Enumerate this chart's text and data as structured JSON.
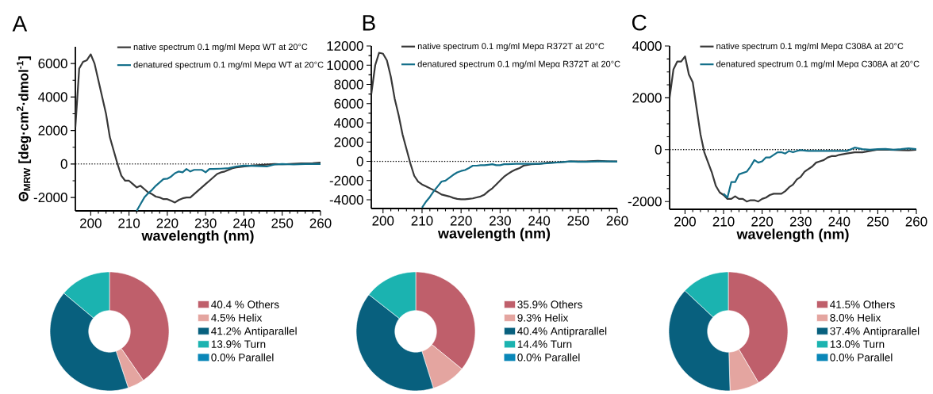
{
  "chart_data": [
    {
      "type": "line",
      "title": "A",
      "xlabel": "wavelength (nm)",
      "ylabel": "Θ$_{MRW}$ [deg·cm$^{2}$·dmol$^{-1}$]",
      "xlim": [
        196,
        260
      ],
      "ylim": [
        -2800,
        7000
      ],
      "xticks": [
        200,
        210,
        220,
        230,
        240,
        250,
        260
      ],
      "yticks": [
        -2000,
        0,
        2000,
        4000,
        6000
      ],
      "legend": "top right",
      "marker": "none",
      "ref_lines": [
        {
          "axis": "y",
          "value": 0,
          "color": "#000000",
          "line_style": "dotted"
        }
      ],
      "series": [
        {
          "name": "native spectrum 0.1 mg/ml Mepα WT at 20°C",
          "color": "#383838",
          "x": [
            196,
            197,
            198,
            199,
            200,
            201,
            202,
            203,
            204,
            205,
            206,
            207,
            208,
            209,
            210,
            211,
            212,
            213,
            214,
            215,
            216,
            217,
            218,
            219,
            220,
            221,
            222,
            223,
            224,
            225,
            226,
            227,
            228,
            229,
            230,
            231,
            232,
            233,
            234,
            235,
            236,
            237,
            238,
            240,
            242,
            245,
            248,
            250,
            252,
            255,
            258,
            260
          ],
          "values": [
            2200,
            5700,
            6100,
            6200,
            6550,
            6000,
            5000,
            4000,
            3000,
            1600,
            800,
            0,
            -700,
            -1000,
            -1000,
            -1200,
            -1400,
            -1300,
            -1500,
            -1700,
            -1800,
            -1950,
            -2000,
            -2100,
            -2100,
            -2200,
            -2300,
            -2150,
            -2050,
            -2000,
            -2000,
            -1800,
            -1600,
            -1400,
            -1200,
            -1000,
            -800,
            -600,
            -500,
            -450,
            -350,
            -250,
            -200,
            -150,
            -100,
            -50,
            0,
            -20,
            0,
            30,
            50,
            80
          ]
        },
        {
          "name": "denatured spectrum 0.1 mg/ml Mepα WT at 20°C",
          "color": "#136f8a",
          "x": [
            212,
            213,
            214,
            215,
            216,
            217,
            218,
            219,
            220,
            221,
            222,
            223,
            224,
            225,
            226,
            227,
            228,
            229,
            230,
            231,
            232,
            234,
            236,
            238,
            240,
            243,
            246,
            248,
            250,
            253,
            256,
            260
          ],
          "values": [
            -2800,
            -2400,
            -2000,
            -1750,
            -1550,
            -1300,
            -1100,
            -900,
            -880,
            -750,
            -550,
            -450,
            -500,
            -300,
            -450,
            -350,
            -350,
            -350,
            -500,
            -300,
            -300,
            -280,
            -250,
            -150,
            -100,
            -120,
            -150,
            -30,
            0,
            -30,
            0,
            0
          ]
        }
      ]
    },
    {
      "type": "line",
      "title": "B",
      "xlabel": "wavelength (nm)",
      "xlim": [
        197,
        260
      ],
      "ylim": [
        -4900,
        12000
      ],
      "xticks": [
        200,
        210,
        220,
        230,
        240,
        250,
        260
      ],
      "yticks": [
        -4000,
        -2000,
        0,
        2000,
        4000,
        6000,
        8000,
        10000,
        12000
      ],
      "legend": "top right",
      "marker": "none",
      "ref_lines": [
        {
          "axis": "y",
          "value": 0,
          "color": "#000000",
          "line_style": "dotted"
        }
      ],
      "series": [
        {
          "name": "native spectrum 0.1 mg/ml Mepα R372T at 20°C",
          "color": "#383838",
          "x": [
            197,
            198,
            199,
            200,
            201,
            202,
            203,
            204,
            205,
            206,
            207,
            208,
            209,
            210,
            211,
            212,
            213,
            214,
            215,
            216,
            217,
            218,
            219,
            220,
            221,
            222,
            223,
            224,
            225,
            226,
            227,
            228,
            229,
            230,
            231,
            232,
            233,
            234,
            235,
            236,
            238,
            240,
            242,
            245,
            248,
            252,
            255,
            258,
            260
          ],
          "values": [
            7000,
            10000,
            11300,
            11200,
            10500,
            8800,
            6500,
            4800,
            2800,
            1300,
            -200,
            -1500,
            -2100,
            -2400,
            -2600,
            -2800,
            -3000,
            -3200,
            -3450,
            -3550,
            -3650,
            -3800,
            -3900,
            -3950,
            -3950,
            -3900,
            -3850,
            -3750,
            -3650,
            -3450,
            -3100,
            -2800,
            -2400,
            -2000,
            -1600,
            -1300,
            -1050,
            -850,
            -700,
            -450,
            -300,
            -250,
            -150,
            -100,
            0,
            0,
            50,
            0,
            0
          ]
        },
        {
          "name": "denatured spectrum 0.1 mg/ml Mepα R372T at 20°C",
          "color": "#136f8a",
          "x": [
            210,
            211,
            212,
            213,
            214,
            215,
            216,
            217,
            218,
            219,
            220,
            221,
            222,
            223,
            224,
            225,
            226,
            227,
            228,
            229,
            230,
            231,
            232,
            234,
            236,
            238,
            240,
            242,
            245,
            248,
            250,
            252,
            255,
            258,
            260
          ],
          "values": [
            -4800,
            -4200,
            -3700,
            -3100,
            -2600,
            -2100,
            -2000,
            -1700,
            -1400,
            -1150,
            -1000,
            -900,
            -700,
            -450,
            -450,
            -400,
            -400,
            -350,
            -300,
            -400,
            -400,
            -300,
            -300,
            -250,
            -250,
            -250,
            -250,
            -200,
            -100,
            0,
            -50,
            -50,
            0,
            0,
            -30
          ]
        }
      ]
    },
    {
      "type": "line",
      "title": "C",
      "xlabel": "wavelength (nm)",
      "xlim": [
        196,
        260
      ],
      "ylim": [
        -2300,
        4000
      ],
      "xticks": [
        200,
        210,
        220,
        230,
        240,
        250,
        260
      ],
      "yticks": [
        -2000,
        0,
        2000,
        4000
      ],
      "legend": "top right",
      "marker": "none",
      "ref_lines": [
        {
          "axis": "y",
          "value": 0,
          "color": "#000000",
          "line_style": "dotted"
        }
      ],
      "series": [
        {
          "name": "native spectrum 0.1 mg/ml Mepα C308A at 20°C",
          "color": "#383838",
          "x": [
            196,
            197,
            198,
            199,
            200,
            201,
            202,
            203,
            204,
            205,
            206,
            207,
            208,
            209,
            210,
            211,
            212,
            213,
            214,
            215,
            216,
            217,
            218,
            219,
            220,
            221,
            222,
            223,
            224,
            225,
            226,
            227,
            228,
            229,
            230,
            231,
            232,
            233,
            234,
            235,
            236,
            237,
            238,
            239,
            240,
            242,
            244,
            246,
            248,
            250,
            253,
            256,
            258,
            260
          ],
          "values": [
            2000,
            3100,
            3400,
            3400,
            3600,
            2900,
            2600,
            1600,
            600,
            -100,
            -500,
            -900,
            -1400,
            -1650,
            -1750,
            -1900,
            -1900,
            -1800,
            -1900,
            -1900,
            -2000,
            -1950,
            -1950,
            -2000,
            -1900,
            -1850,
            -1750,
            -1700,
            -1700,
            -1700,
            -1600,
            -1450,
            -1350,
            -1150,
            -1050,
            -850,
            -750,
            -650,
            -500,
            -450,
            -400,
            -300,
            -250,
            -250,
            -200,
            -150,
            -100,
            -100,
            -50,
            0,
            0,
            -20,
            -30,
            0
          ]
        },
        {
          "name": "denatured spectrum 0.1 mg/ml Mepα C308A at 20°C",
          "color": "#136f8a",
          "x": [
            210,
            211,
            212,
            213,
            214,
            215,
            216,
            217,
            218,
            219,
            220,
            221,
            222,
            223,
            224,
            225,
            226,
            227,
            228,
            229,
            230,
            232,
            235,
            238,
            240,
            242,
            244,
            246,
            248,
            250,
            252,
            254,
            256,
            258,
            260
          ],
          "values": [
            -1700,
            -1850,
            -1250,
            -1250,
            -950,
            -900,
            -850,
            -650,
            -400,
            -500,
            -450,
            -300,
            -300,
            -200,
            -100,
            -100,
            -150,
            -50,
            -100,
            -50,
            -20,
            -50,
            -50,
            -50,
            -50,
            -50,
            80,
            20,
            0,
            20,
            30,
            0,
            20,
            50,
            20
          ]
        }
      ]
    },
    {
      "type": "donut",
      "categories": [
        "40.4 % Others",
        "4.5% Helix",
        "41.2% Antiparallel",
        "13.9% Turn",
        "0.0% Parallel"
      ],
      "values": [
        40.4,
        4.5,
        41.2,
        13.9,
        0.0
      ],
      "colors": [
        "#bf5f6b",
        "#e4a5a0",
        "#08607e",
        "#1bb3b0",
        "#0a87b8"
      ],
      "legend": "right"
    },
    {
      "type": "donut",
      "categories": [
        "35.9% Others",
        "9.3% Helix",
        "40.4% Antiprarallel",
        "14.4% Turn",
        "0.0% Parallel"
      ],
      "values": [
        35.9,
        9.3,
        40.4,
        14.4,
        0.0
      ],
      "colors": [
        "#bf5f6b",
        "#e4a5a0",
        "#08607e",
        "#1bb3b0",
        "#0a87b8"
      ],
      "legend": "right"
    },
    {
      "type": "donut",
      "categories": [
        "41.5%  Others",
        "8.0%  Helix",
        "37.4%  Antiprarallel",
        "13.0%  Turn",
        "0.0%  Parallel"
      ],
      "values": [
        41.5,
        8.0,
        37.4,
        13.0,
        0.0
      ],
      "colors": [
        "#bf5f6b",
        "#e4a5a0",
        "#08607e",
        "#1bb3b0",
        "#0a87b8"
      ],
      "legend": "right"
    }
  ]
}
